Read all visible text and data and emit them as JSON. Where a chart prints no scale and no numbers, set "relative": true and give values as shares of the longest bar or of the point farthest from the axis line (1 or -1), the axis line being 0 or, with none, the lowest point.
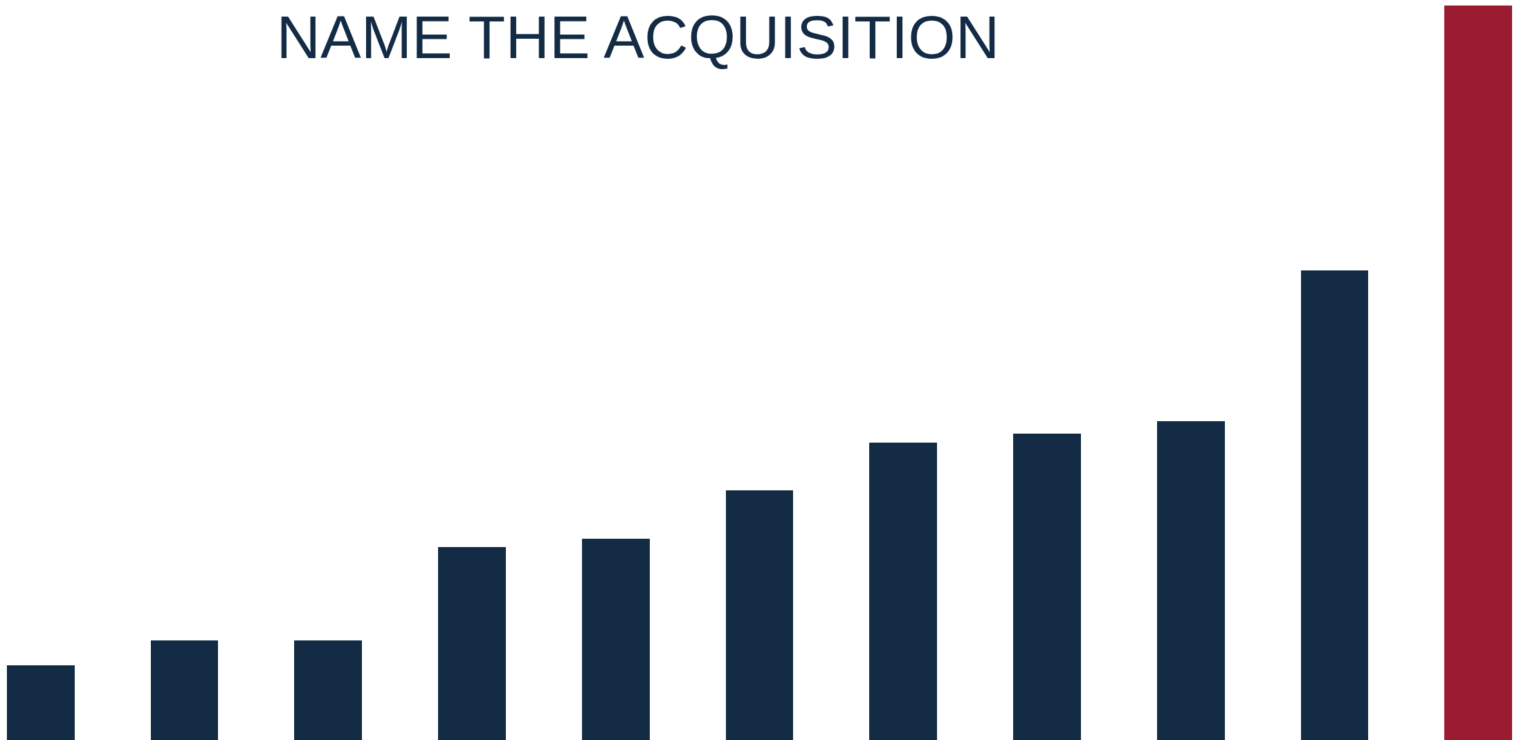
{
  "chart_data": {
    "type": "bar",
    "title": "NAME THE ACQUISITION",
    "relative": true,
    "legend": false,
    "categories": [
      null,
      null,
      null,
      null,
      null,
      null,
      null,
      null,
      null,
      null,
      null
    ],
    "values": [
      0.102,
      0.136,
      0.136,
      0.263,
      0.274,
      0.34,
      0.405,
      0.417,
      0.434,
      0.639,
      1
    ],
    "colors": [
      "#132b45",
      "#132b45",
      "#132b45",
      "#132b45",
      "#132b45",
      "#132b45",
      "#132b45",
      "#132b45",
      "#132b45",
      "#132b45",
      "#9b1c31"
    ]
  }
}
